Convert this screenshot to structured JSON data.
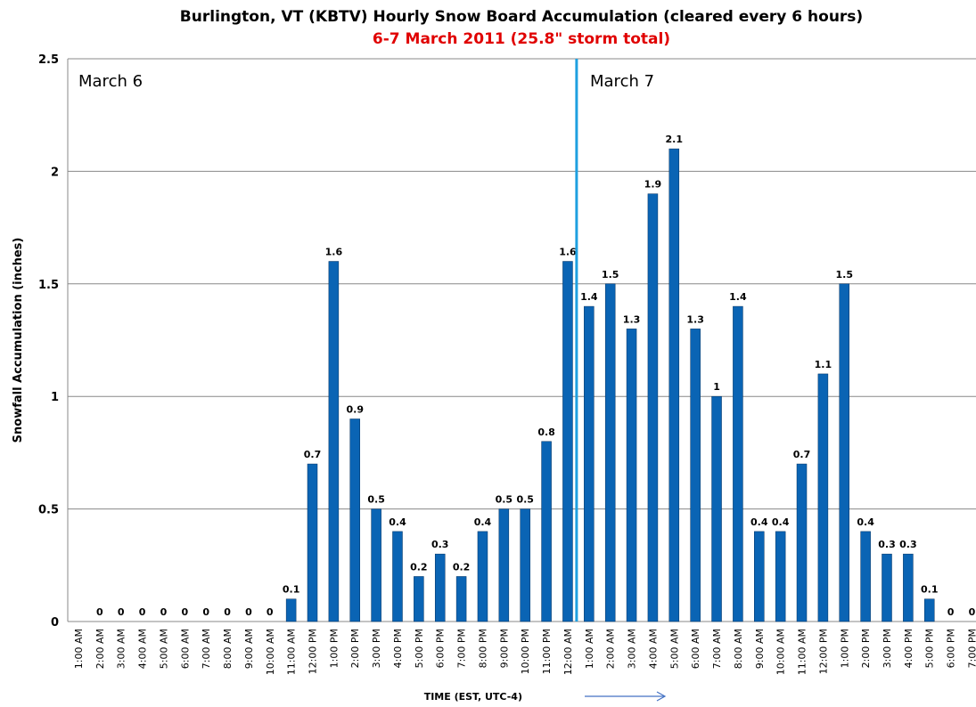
{
  "chart_data": {
    "type": "bar",
    "title": "Burlington, VT (KBTV) Hourly Snow Board Accumulation  (cleared every 6 hours)",
    "subtitle": "6-7 March 2011 (25.8\" storm total)",
    "y_label": "Snowfall Accumulation (inches)",
    "x_label": "TIME (EST, UTC-4)",
    "annotations": [
      "March 6",
      "March 7"
    ],
    "categories": [
      "1:00 AM",
      "2:00 AM",
      "3:00 AM",
      "4:00 AM",
      "5:00 AM",
      "6:00 AM",
      "7:00 AM",
      "8:00 AM",
      "9:00 AM",
      "10:00 AM",
      "11:00 AM",
      "12:00 PM",
      "1:00 PM",
      "2:00 PM",
      "3:00 PM",
      "4:00 PM",
      "5:00 PM",
      "6:00 PM",
      "7:00 PM",
      "8:00 PM",
      "9:00 PM",
      "10:00 PM",
      "11:00 PM",
      "12:00 AM",
      "1:00 AM",
      "2:00 AM",
      "3:00 AM",
      "4:00 AM",
      "5:00 AM",
      "6:00 AM",
      "7:00 AM",
      "8:00 AM",
      "9:00 AM",
      "10:00 AM",
      "11:00 AM",
      "12:00 PM",
      "1:00 PM",
      "2:00 PM",
      "3:00 PM",
      "4:00 PM",
      "5:00 PM",
      "6:00 PM",
      "7:00 PM"
    ],
    "values": [
      null,
      0,
      0,
      0,
      0,
      0,
      0,
      0,
      0,
      0,
      0.1,
      0.7,
      1.6,
      0.9,
      0.5,
      0.4,
      0.2,
      0.3,
      0.2,
      0.4,
      0.5,
      0.5,
      0.8,
      1.6,
      1.4,
      1.5,
      1.3,
      1.9,
      2.1,
      1.3,
      1,
      1.4,
      0.4,
      0.4,
      0.7,
      1.1,
      1.5,
      0.4,
      0.3,
      0.3,
      0.1,
      0,
      0
    ],
    "color": "#0a64b4",
    "divider_color": "#1ea0e0",
    "ylim": [
      0,
      2.5
    ],
    "yticks": [
      0,
      0.5,
      1,
      1.5,
      2,
      2.5
    ],
    "grid": true
  }
}
